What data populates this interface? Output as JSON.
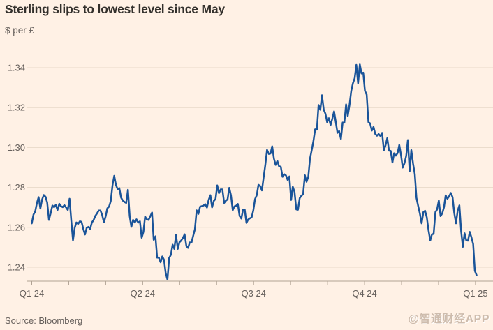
{
  "header": {
    "title": "Sterling slips to lowest level since May",
    "subtitle": "$ per £"
  },
  "footer": {
    "source": "Source: Bloomberg",
    "watermark": "@智通财经APP"
  },
  "colors": {
    "background": "#FFF1E5",
    "line": "#1A5499",
    "grid": "#E8D9C9",
    "axis": "#B0A294",
    "title_text": "#33302C",
    "label_text": "#66605C",
    "watermark": "#CEBCAD"
  },
  "chart_data": {
    "type": "line",
    "title": "Sterling slips to lowest level since May",
    "ylabel": "$ per £",
    "xlabel": "",
    "grid": "horizontal",
    "legend": "none",
    "y_ticks": [
      1.24,
      1.26,
      1.28,
      1.3,
      1.32,
      1.34
    ],
    "ylim": [
      1.2333,
      1.3416
    ],
    "x_tick_labels": [
      "Q1 24",
      "Q2 24",
      "Q3 24",
      "Q4 24",
      "Q1 25"
    ],
    "x_minor_ticks": "monthly",
    "frequency": "daily (business days), Jan 2024 - early Jan 2025",
    "series": [
      {
        "name": "$ per £",
        "values": [
          1.262,
          1.2664,
          1.2679,
          1.2722,
          1.2751,
          1.2694,
          1.2739,
          1.2762,
          1.2753,
          1.2724,
          1.2637,
          1.2671,
          1.2709,
          1.2701,
          1.2712,
          1.2687,
          1.2718,
          1.2706,
          1.2701,
          1.2711,
          1.2699,
          1.2687,
          1.2743,
          1.2631,
          1.2535,
          1.2598,
          1.2624,
          1.2617,
          1.263,
          1.2627,
          1.2592,
          1.2564,
          1.2598,
          1.2602,
          1.2592,
          1.2624,
          1.2636,
          1.2657,
          1.267,
          1.2684,
          1.2684,
          1.2662,
          1.2625,
          1.2655,
          1.2695,
          1.2704,
          1.2731,
          1.281,
          1.2858,
          1.2813,
          1.2791,
          1.2796,
          1.2749,
          1.2734,
          1.2727,
          1.2722,
          1.2788,
          1.2657,
          1.2602,
          1.2637,
          1.2624,
          1.264,
          1.2623,
          1.263,
          1.2548,
          1.2577,
          1.2653,
          1.264,
          1.2637,
          1.2655,
          1.2674,
          1.2537,
          1.2555,
          1.2448,
          1.2448,
          1.2425,
          1.2454,
          1.2437,
          1.237,
          1.2338,
          1.2447,
          1.2462,
          1.2513,
          1.2492,
          1.2562,
          1.2492,
          1.2525,
          1.2534,
          1.2546,
          1.2565,
          1.2506,
          1.2497,
          1.2524,
          1.2523,
          1.2558,
          1.259,
          1.2685,
          1.2667,
          1.2703,
          1.2706,
          1.2709,
          1.2716,
          1.2699,
          1.2737,
          1.2761,
          1.27,
          1.2732,
          1.2742,
          1.281,
          1.2771,
          1.279,
          1.279,
          1.2722,
          1.2733,
          1.274,
          1.2798,
          1.276,
          1.2686,
          1.2705,
          1.2708,
          1.2717,
          1.2657,
          1.2644,
          1.2687,
          1.2688,
          1.2622,
          1.2639,
          1.2645,
          1.2649,
          1.2685,
          1.2741,
          1.2761,
          1.2813,
          1.2807,
          1.2785,
          1.2849,
          1.2914,
          1.2988,
          1.2968,
          1.297,
          1.3006,
          1.2944,
          1.2913,
          1.2932,
          1.2905,
          1.2904,
          1.2853,
          1.2866,
          1.286,
          1.2837,
          1.2855,
          1.2737,
          1.2803,
          1.2777,
          1.269,
          1.2688,
          1.2746,
          1.2758,
          1.2766,
          1.2861,
          1.2828,
          1.2853,
          1.2943,
          1.2987,
          1.3033,
          1.3091,
          1.3089,
          1.3213,
          1.3189,
          1.3262,
          1.319,
          1.3169,
          1.3127,
          1.3147,
          1.3113,
          1.3144,
          1.3181,
          1.3129,
          1.3073,
          1.3082,
          1.3043,
          1.3125,
          1.3124,
          1.3216,
          1.3158,
          1.3213,
          1.3284,
          1.3322,
          1.3347,
          1.3414,
          1.3322,
          1.3416,
          1.3371,
          1.3375,
          1.3284,
          1.3265,
          1.3127,
          1.3121,
          1.3085,
          1.3103,
          1.3068,
          1.3059,
          1.3067,
          1.3057,
          1.3073,
          1.2986,
          1.3011,
          1.3047,
          1.2984,
          1.2983,
          1.2925,
          1.2971,
          1.2959,
          1.2972,
          1.3013,
          1.2962,
          1.2899,
          1.2921,
          1.2958,
          1.3037,
          1.288,
          1.2987,
          1.292,
          1.2867,
          1.2747,
          1.2706,
          1.2669,
          1.262,
          1.2676,
          1.2683,
          1.265,
          1.2587,
          1.2534,
          1.2565,
          1.2567,
          1.2676,
          1.2689,
          1.2734,
          1.2656,
          1.267,
          1.27,
          1.276,
          1.2743,
          1.2755,
          1.2772,
          1.2751,
          1.2672,
          1.262,
          1.2683,
          1.271,
          1.258,
          1.2502,
          1.257,
          1.2535,
          1.2533,
          1.2577,
          1.255,
          1.2516,
          1.2382,
          1.236
        ]
      }
    ]
  }
}
